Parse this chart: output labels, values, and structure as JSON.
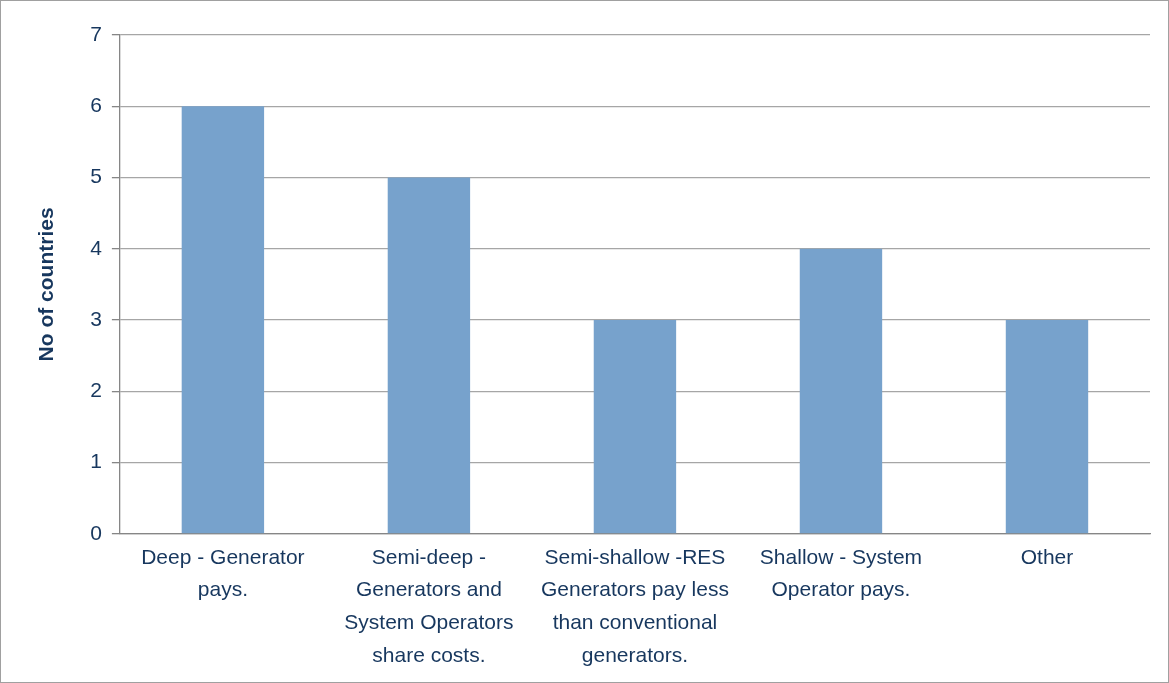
{
  "chart_data": {
    "type": "bar",
    "ylabel": "No of countries",
    "categories": [
      "Deep - Generator pays.",
      "Semi-deep - Generators and System Operators share costs.",
      "Semi-shallow -RES Generators pay less than conventional generators.",
      "Shallow - System Operator pays.",
      "Other"
    ],
    "values": [
      6,
      5,
      3,
      4,
      3
    ],
    "color": "#77a2cc",
    "ylim": [
      0,
      7
    ],
    "yticks": [
      0,
      1,
      2,
      3,
      4,
      5,
      6,
      7
    ],
    "grid": "y",
    "legend": false
  }
}
